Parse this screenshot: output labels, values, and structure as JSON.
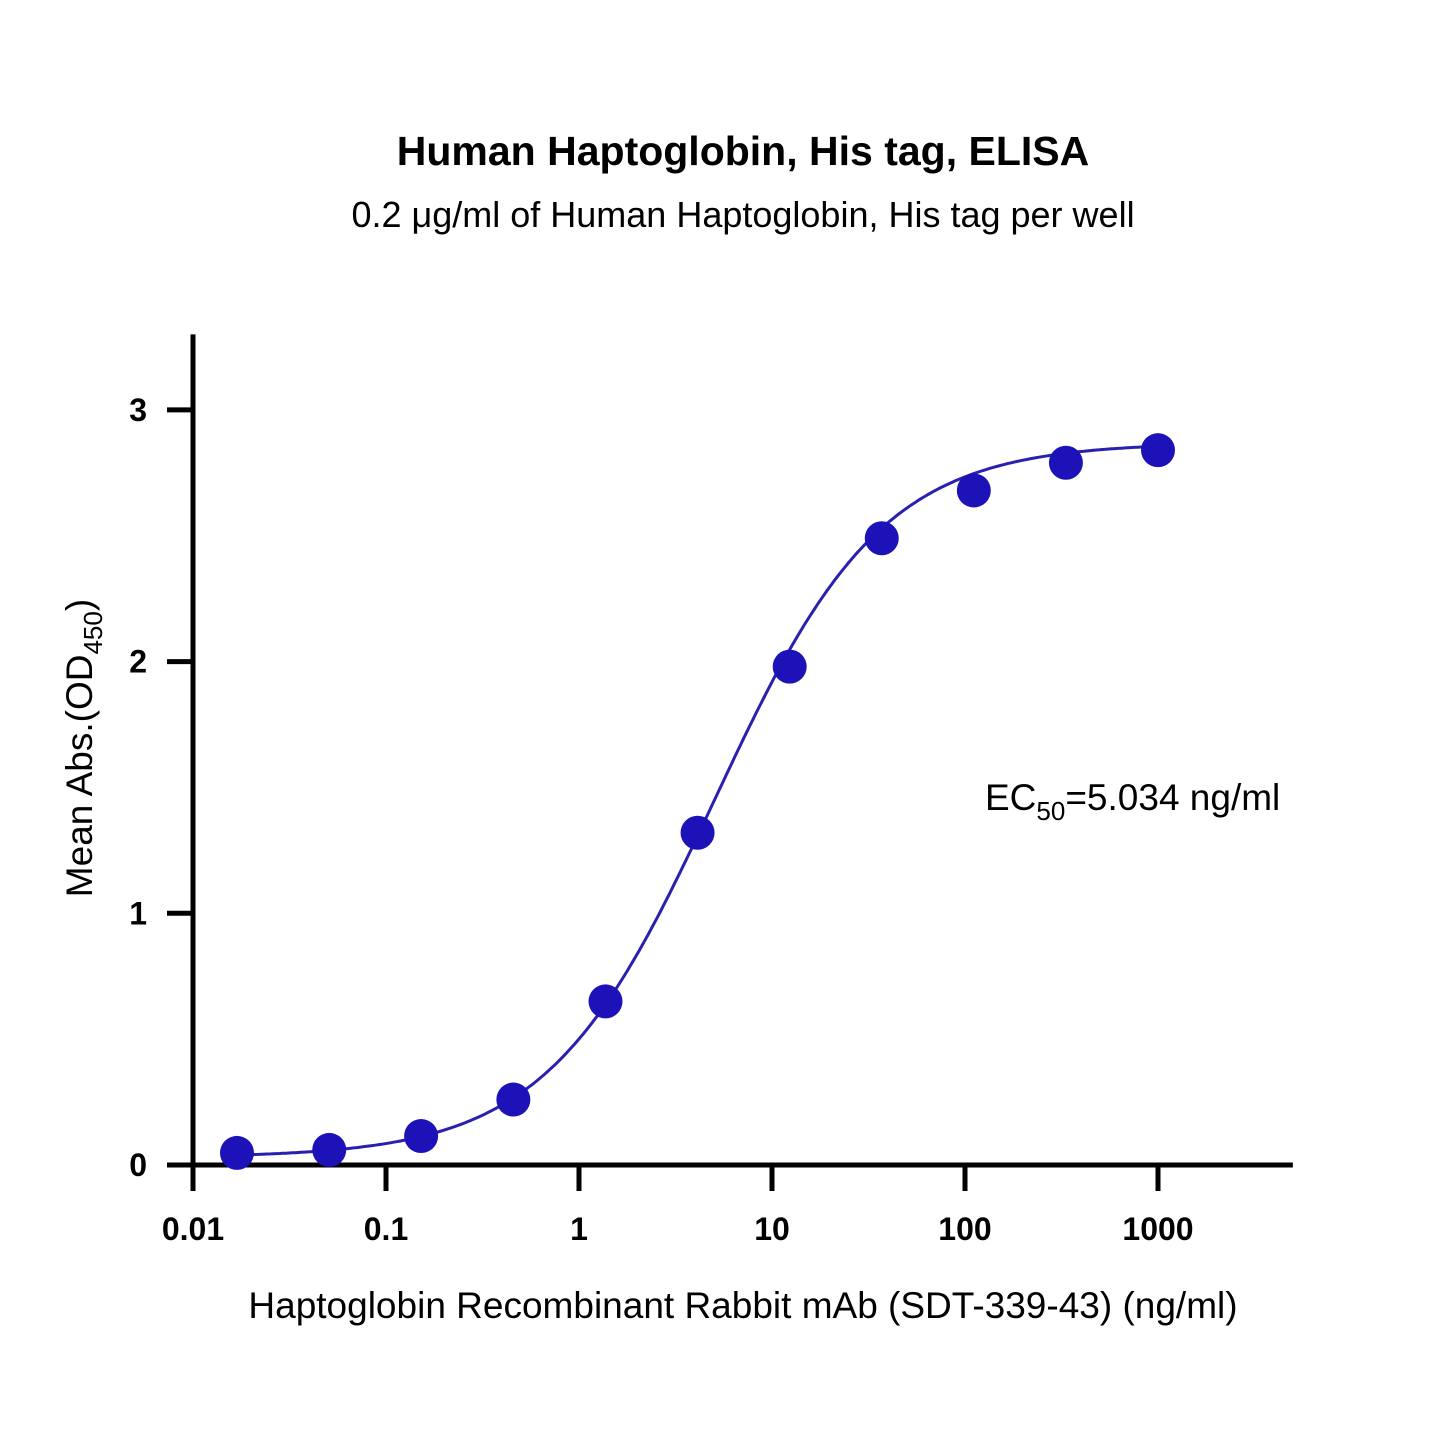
{
  "chart_data": {
    "type": "scatter",
    "title": "Human Haptoglobin, His tag, ELISA",
    "subtitle": "0.2 μg/ml of Human Haptoglobin, His tag per well",
    "xlabel": "Haptoglobin Recombinant Rabbit mAb (SDT-339-43) (ng/ml)",
    "ylabel": {
      "main": "Mean Abs.(OD",
      "sub": "450",
      "end": ")"
    },
    "xscale": "log",
    "xlim": [
      0.01,
      5000
    ],
    "ylim": [
      0,
      3.3
    ],
    "xticks": [
      {
        "value": 0.01,
        "label": "0.01"
      },
      {
        "value": 0.1,
        "label": "0.1"
      },
      {
        "value": 1,
        "label": "1"
      },
      {
        "value": 10,
        "label": "10"
      },
      {
        "value": 100,
        "label": "100"
      },
      {
        "value": 1000,
        "label": "1000"
      }
    ],
    "yticks": [
      {
        "value": 0,
        "label": "0"
      },
      {
        "value": 1,
        "label": "1"
      },
      {
        "value": 2,
        "label": "2"
      },
      {
        "value": 3,
        "label": "3"
      }
    ],
    "grid": false,
    "series": [
      {
        "name": "Haptoglobin Recombinant Rabbit mAb (SDT-339-43)",
        "color": "#1c12b8",
        "x": [
          0.0169,
          0.0508,
          0.152,
          0.457,
          1.372,
          4.115,
          12.35,
          37.04,
          111.1,
          333.3,
          1000
        ],
        "y": [
          0.048,
          0.06,
          0.115,
          0.26,
          0.65,
          1.32,
          1.98,
          2.49,
          2.68,
          2.79,
          2.84
        ]
      }
    ],
    "fit": {
      "model": "4PL",
      "bottom": 0.03,
      "top": 2.87,
      "ec50": 5.034,
      "hill": 1.0,
      "color": "#2a20b0"
    },
    "annotation": {
      "main": "EC",
      "sub": "50",
      "end": "=5.034 ng/ml"
    }
  }
}
